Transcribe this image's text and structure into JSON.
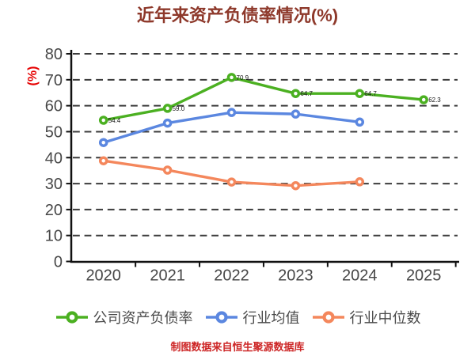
{
  "title": "近年来资产负债率情况(%)",
  "footer": "制图数据来自恒生聚源数据库",
  "colors": {
    "title": "#8e392b",
    "footer": "#cd2626",
    "axis": "#111111",
    "grid": "#3c3c3c",
    "tick_label": "#474747",
    "ylabel": "#e60000",
    "legend_text": "#4a4a4a",
    "point_label": "#161616",
    "green": "#4bb021",
    "blue": "#5b87e0",
    "orange": "#f4875c"
  },
  "chart_data": {
    "type": "line",
    "title": "近年来资产负债率情况(%)",
    "ylabel": "(%)",
    "ylim": [
      0,
      80
    ],
    "yticks": [
      0,
      10,
      20,
      30,
      40,
      50,
      60,
      70,
      80
    ],
    "grid": true,
    "grid_style": "dashed",
    "legend_position": "bottom",
    "categories": [
      "2020",
      "2021",
      "2022",
      "2023",
      "2024",
      "2025"
    ],
    "series": [
      {
        "name": "公司资产负债率",
        "color_key": "green",
        "values": [
          54.4,
          59.0,
          70.9,
          64.7,
          64.7,
          62.3
        ],
        "point_labels": [
          "54.4",
          "59.0",
          "70.9",
          "64.7",
          "64.7",
          "62.3"
        ]
      },
      {
        "name": "行业均值",
        "color_key": "blue",
        "values": [
          45.8,
          53.3,
          57.4,
          56.8,
          53.7
        ]
      },
      {
        "name": "行业中位数",
        "color_key": "orange",
        "values": [
          38.8,
          35.2,
          30.6,
          29.2,
          30.7
        ]
      }
    ]
  }
}
